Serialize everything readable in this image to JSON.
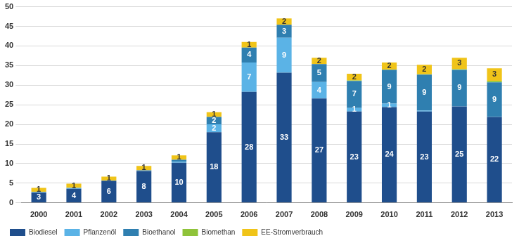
{
  "chart_data": {
    "type": "bar",
    "stacked": true,
    "grid": true,
    "legend": "bottom",
    "data_labels": true,
    "categories": [
      "2000",
      "2001",
      "2002",
      "2003",
      "2004",
      "2005",
      "2006",
      "2007",
      "2008",
      "2009",
      "2010",
      "2011",
      "2012",
      "2013"
    ],
    "ylim": [
      0,
      50
    ],
    "yticks": [
      0,
      5,
      10,
      15,
      20,
      25,
      30,
      35,
      40,
      45,
      50
    ],
    "series": [
      {
        "name": "Biodiesel",
        "color": "#1f4e8c",
        "values": [
          2.6,
          3.6,
          5.6,
          8.1,
          10.2,
          18.0,
          28.3,
          33.2,
          26.6,
          23.3,
          24.4,
          23.3,
          24.6,
          21.9
        ],
        "value_labels": [
          "3",
          "4",
          "6",
          "8",
          "10",
          "18",
          "28",
          "33",
          "27",
          "23",
          "24",
          "23",
          "25",
          "22"
        ]
      },
      {
        "name": "Pflanzenöl",
        "color": "#5bb3e6",
        "values": [
          0.2,
          0.2,
          0.1,
          0.1,
          0.3,
          2.0,
          7.5,
          8.9,
          4.2,
          0.9,
          0.9,
          0.2,
          0.1,
          0.1
        ],
        "value_labels": [
          null,
          null,
          null,
          null,
          null,
          "2",
          "7",
          "9",
          "4",
          "1",
          "1",
          null,
          null,
          null
        ]
      },
      {
        "name": "Bioethanol",
        "color": "#2f7fb0",
        "values": [
          0,
          0,
          0,
          0.1,
          0.5,
          1.9,
          3.8,
          3.3,
          4.6,
          6.9,
          8.6,
          9.2,
          9.2,
          8.7
        ],
        "value_labels": [
          null,
          null,
          null,
          null,
          null,
          "2",
          "4",
          "3",
          "5",
          "7",
          "9",
          "9",
          "9",
          "9"
        ]
      },
      {
        "name": "Biomethan",
        "color": "#8fc33a",
        "values": [
          0,
          0,
          0,
          0,
          0,
          0,
          0,
          0,
          0,
          0.1,
          0.1,
          0.1,
          0.2,
          0.4
        ],
        "value_labels": [
          null,
          null,
          null,
          null,
          null,
          null,
          null,
          null,
          null,
          null,
          null,
          null,
          null,
          null
        ]
      },
      {
        "name": "EE-Stromverbrauch",
        "color": "#f0c419",
        "values": [
          1.0,
          1.1,
          1.0,
          1.1,
          1.1,
          1.2,
          1.4,
          1.6,
          1.6,
          1.7,
          1.8,
          2.4,
          2.9,
          3.2
        ],
        "value_labels": [
          "1",
          "1",
          "1",
          "1",
          "1",
          "1",
          "1",
          "2",
          "2",
          "2",
          "2",
          "2",
          "3",
          "3"
        ]
      }
    ]
  }
}
